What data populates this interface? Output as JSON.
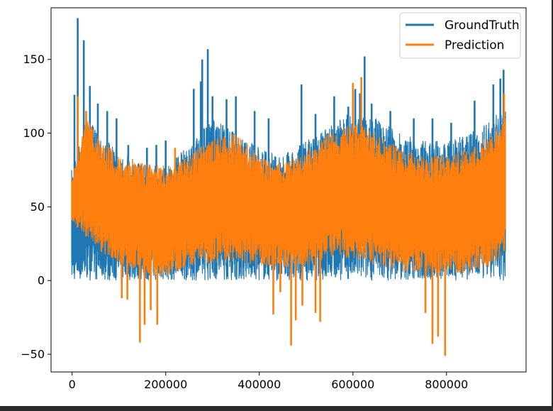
{
  "chart_data": {
    "type": "line",
    "title": "",
    "xlabel": "",
    "ylabel": "",
    "xlim": [
      -45000,
      970000
    ],
    "ylim": [
      -62,
      185
    ],
    "x_ticks": [
      0,
      200000,
      400000,
      600000,
      800000
    ],
    "x_tick_labels": [
      "0",
      "200000",
      "400000",
      "600000",
      "800000"
    ],
    "y_ticks": [
      -50,
      0,
      50,
      100,
      150
    ],
    "y_tick_labels": [
      "−50",
      "0",
      "50",
      "100",
      "150"
    ],
    "grid": false,
    "legend_placement": "top-right",
    "x_start": 0,
    "x_end": 925000,
    "series": [
      {
        "name": "GroundTruth",
        "color": "#1f77b4",
        "envelope": {
          "x": [
            0,
            30000,
            60000,
            100000,
            150000,
            200000,
            250000,
            300000,
            350000,
            400000,
            450000,
            500000,
            550000,
            600000,
            650000,
            700000,
            750000,
            800000,
            850000,
            900000,
            925000
          ],
          "upper": [
            75,
            110,
            100,
            88,
            80,
            78,
            92,
            110,
            100,
            90,
            85,
            95,
            105,
            115,
            110,
            100,
            95,
            95,
            100,
            110,
            120
          ],
          "lower": [
            0,
            0,
            0,
            0,
            0,
            0,
            0,
            0,
            0,
            0,
            0,
            0,
            0,
            0,
            0,
            0,
            0,
            0,
            0,
            0,
            0
          ]
        },
        "spikes": [
          [
            12000,
            178
          ],
          [
            25000,
            163
          ],
          [
            5000,
            126
          ],
          [
            38000,
            132
          ],
          [
            55000,
            120
          ],
          [
            75000,
            115
          ],
          [
            95000,
            110
          ],
          [
            120000,
            92
          ],
          [
            160000,
            90
          ],
          [
            180000,
            92
          ],
          [
            200000,
            95
          ],
          [
            260000,
            130
          ],
          [
            275000,
            135
          ],
          [
            290000,
            157
          ],
          [
            278000,
            150
          ],
          [
            300000,
            125
          ],
          [
            330000,
            123
          ],
          [
            350000,
            125
          ],
          [
            390000,
            115
          ],
          [
            420000,
            110
          ],
          [
            490000,
            133
          ],
          [
            520000,
            113
          ],
          [
            560000,
            125
          ],
          [
            590000,
            118
          ],
          [
            600000,
            128
          ],
          [
            605000,
            130
          ],
          [
            615000,
            127
          ],
          [
            625000,
            152
          ],
          [
            640000,
            120
          ],
          [
            680000,
            115
          ],
          [
            730000,
            110
          ],
          [
            770000,
            110
          ],
          [
            810000,
            107
          ],
          [
            860000,
            122
          ],
          [
            900000,
            133
          ],
          [
            915000,
            137
          ],
          [
            922000,
            143
          ]
        ]
      },
      {
        "name": "Prediction",
        "color": "#ff7f0e",
        "envelope": {
          "x": [
            0,
            30000,
            60000,
            100000,
            150000,
            200000,
            250000,
            300000,
            350000,
            400000,
            450000,
            500000,
            550000,
            600000,
            650000,
            700000,
            750000,
            800000,
            850000,
            900000,
            925000
          ],
          "upper": [
            70,
            110,
            98,
            85,
            80,
            78,
            85,
            97,
            100,
            85,
            80,
            88,
            100,
            108,
            100,
            90,
            85,
            85,
            90,
            100,
            112
          ],
          "lower": [
            40,
            30,
            20,
            12,
            5,
            2,
            10,
            12,
            12,
            10,
            8,
            10,
            15,
            15,
            10,
            5,
            5,
            5,
            5,
            10,
            20
          ]
        },
        "spikes_up": [
          [
            12000,
            125
          ],
          [
            30000,
            115
          ],
          [
            220000,
            90
          ],
          [
            600000,
            134
          ],
          [
            618000,
            138
          ],
          [
            923000,
            127
          ]
        ],
        "spikes_down": [
          [
            106000,
            -12
          ],
          [
            118000,
            -13
          ],
          [
            145000,
            -42
          ],
          [
            155000,
            -30
          ],
          [
            168000,
            -20
          ],
          [
            182000,
            -30
          ],
          [
            430000,
            -23
          ],
          [
            445000,
            -8
          ],
          [
            468000,
            -44
          ],
          [
            478000,
            -27
          ],
          [
            492000,
            -17
          ],
          [
            520000,
            -22
          ],
          [
            530000,
            -28
          ],
          [
            755000,
            -22
          ],
          [
            770000,
            -43
          ],
          [
            782000,
            -38
          ],
          [
            797000,
            -51
          ]
        ]
      }
    ]
  }
}
